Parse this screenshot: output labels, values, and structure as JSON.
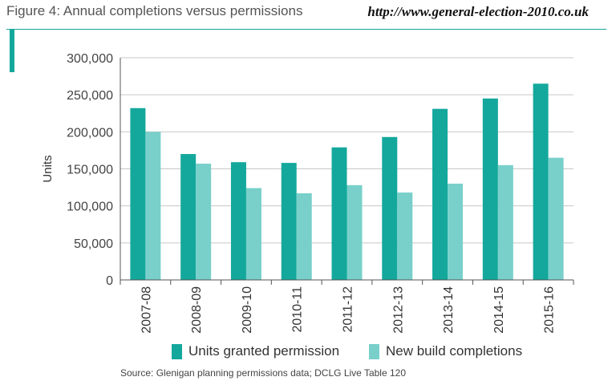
{
  "header": {
    "title": "Figure 4: Annual completions versus permissions",
    "url": "http://www.general-election-2010.co.uk"
  },
  "footer": {
    "source": "Source: Glenigan planning permissions data; DCLG Live Table 120"
  },
  "colors": {
    "accent": "#14a89c",
    "permission": "#14a89c",
    "completion": "#79d0ca",
    "grid": "#c8c8c8",
    "axis": "#555555"
  },
  "chart_data": {
    "type": "bar",
    "title": "",
    "xlabel": "",
    "ylabel": "Units",
    "ylim": [
      0,
      300000
    ],
    "yticks": [
      0,
      50000,
      100000,
      150000,
      200000,
      250000,
      300000
    ],
    "ytick_labels": [
      "0",
      "50,000",
      "100,000",
      "150,000",
      "200,000",
      "250,000",
      "300,000"
    ],
    "grid": "horizontal",
    "legend_position": "bottom",
    "categories": [
      "2007-08",
      "2008-09",
      "2009-10",
      "2010-11",
      "2011-12",
      "2012-13",
      "2013-14",
      "2014-15",
      "2015-16"
    ],
    "series": [
      {
        "name": "Units granted permission",
        "values": [
          232000,
          170000,
          159000,
          158000,
          179000,
          193000,
          231000,
          245000,
          265000
        ]
      },
      {
        "name": "New build completions",
        "values": [
          200000,
          157000,
          124000,
          117000,
          128000,
          118000,
          130000,
          155000,
          165000
        ]
      }
    ]
  }
}
